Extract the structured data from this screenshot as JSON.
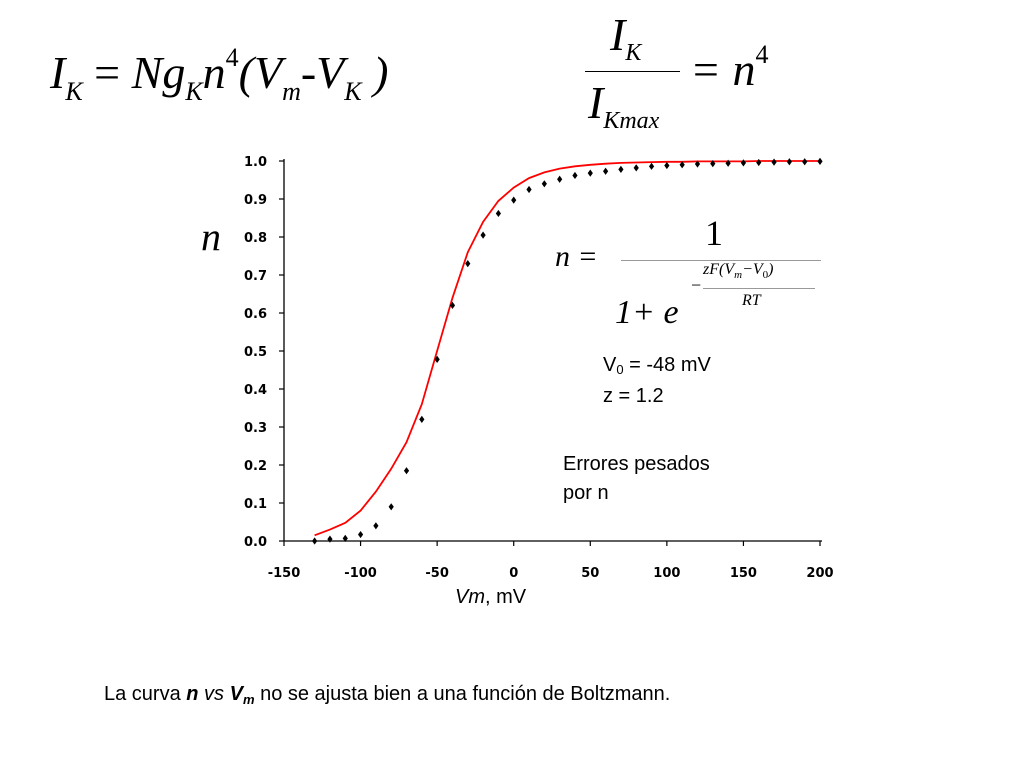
{
  "equations": {
    "eq1": {
      "I": "I",
      "K_sub": "K",
      "equals": "=",
      "N": "N",
      "g": "g",
      "K_sub2": "K",
      "n": "n",
      "exp4": "4",
      "open": "(V",
      "m_sub": "m",
      "minus": "-V",
      "K_sub3": "K",
      "close": ")"
    },
    "eq2": {
      "num_I": "I",
      "num_sub": "K",
      "den_I": "I",
      "den_sub": "Kmax",
      "rhs": "= n",
      "rhs_exp": "4"
    },
    "eq3": {
      "lhs": "n =",
      "numerator": "1",
      "denominator": "1+ e",
      "minus": "−",
      "exp_zF": "zF",
      "exp_open": "(V",
      "exp_m": "m",
      "exp_minus": "−V",
      "exp_0": "0",
      "exp_close": ")",
      "exp_den": "RT"
    }
  },
  "params": {
    "v0_prefix": "V",
    "v0_sub": "0",
    "v0_rest": " = -48 mV",
    "z_line": "z = 1.2"
  },
  "note": {
    "line1": "Errores pesados",
    "line2": "por n"
  },
  "ylabel": "n",
  "xlabel": {
    "italic": "Vm",
    "rest": ", mV"
  },
  "caption": {
    "part1": "La curva ",
    "n": "n",
    "vs": " vs ",
    "V": "V",
    "m": "m",
    "part2": " no se ajusta bien a una función de Boltzmann."
  },
  "chart_data": {
    "type": "scatter",
    "xlim": [
      -150,
      200
    ],
    "ylim": [
      0.0,
      1.0
    ],
    "x_ticks": [
      -150,
      -100,
      -50,
      0,
      50,
      100,
      150,
      200
    ],
    "x_tick_labels": [
      "-150",
      "-100",
      "-50",
      "0",
      "50",
      "100",
      "150",
      "200"
    ],
    "y_ticks": [
      0.0,
      0.1,
      0.2,
      0.3,
      0.4,
      0.5,
      0.6,
      0.7,
      0.8,
      0.9,
      1.0
    ],
    "y_tick_labels": [
      "0.0",
      "0.1",
      "0.2",
      "0.3",
      "0.4",
      "0.5",
      "0.6",
      "0.7",
      "0.8",
      "0.9",
      "1.0"
    ],
    "xlabel": "Vm, mV",
    "ylabel": "n",
    "grid": false,
    "colors": {
      "points": "#000000",
      "fit": "#ff0000"
    },
    "series": [
      {
        "kind": "points",
        "x": [
          -130,
          -120,
          -110,
          -100,
          -90,
          -80,
          -70,
          -60,
          -50,
          -40,
          -30,
          -20,
          -10,
          0,
          10,
          20,
          30,
          40,
          50,
          60,
          70,
          80,
          90,
          100,
          110,
          120,
          130,
          140,
          150,
          160,
          170,
          180,
          190,
          200
        ],
        "y": [
          0.0,
          0.005,
          0.007,
          0.017,
          0.04,
          0.09,
          0.185,
          0.32,
          0.478,
          0.62,
          0.73,
          0.805,
          0.862,
          0.897,
          0.925,
          0.94,
          0.952,
          0.962,
          0.968,
          0.973,
          0.978,
          0.982,
          0.986,
          0.988,
          0.99,
          0.992,
          0.993,
          0.994,
          0.995,
          0.996,
          0.997,
          0.998,
          0.998,
          0.999
        ]
      },
      {
        "kind": "fit",
        "x": [
          -130,
          -120,
          -110,
          -100,
          -90,
          -80,
          -70,
          -60,
          -50,
          -40,
          -30,
          -20,
          -10,
          0,
          10,
          20,
          30,
          40,
          50,
          60,
          70,
          80,
          90,
          100,
          110,
          120,
          130,
          140,
          150,
          160,
          170,
          180,
          190,
          200
        ],
        "y": [
          0.015,
          0.03,
          0.048,
          0.08,
          0.13,
          0.19,
          0.26,
          0.36,
          0.5,
          0.64,
          0.76,
          0.84,
          0.895,
          0.93,
          0.955,
          0.97,
          0.98,
          0.986,
          0.99,
          0.993,
          0.995,
          0.996,
          0.997,
          0.998,
          0.998,
          0.999,
          0.999,
          0.999,
          0.999,
          1.0,
          1.0,
          1.0,
          1.0,
          1.0
        ]
      }
    ]
  }
}
